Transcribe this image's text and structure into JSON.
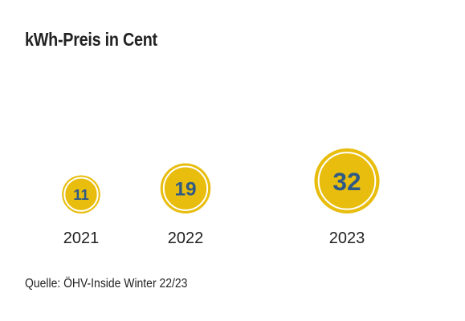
{
  "chart_data": {
    "type": "bubble",
    "title": "kWh-Preis in Cent",
    "categories": [
      "2021",
      "2022",
      "2023"
    ],
    "values": [
      11,
      19,
      32
    ],
    "source": "Quelle: ÖHV-Inside Winter 22/23",
    "colors": {
      "bubble_fill": "#E8BD0D",
      "ring": "#FFFFFF",
      "value_text": "#2F5A86",
      "label_text": "#222222"
    }
  }
}
